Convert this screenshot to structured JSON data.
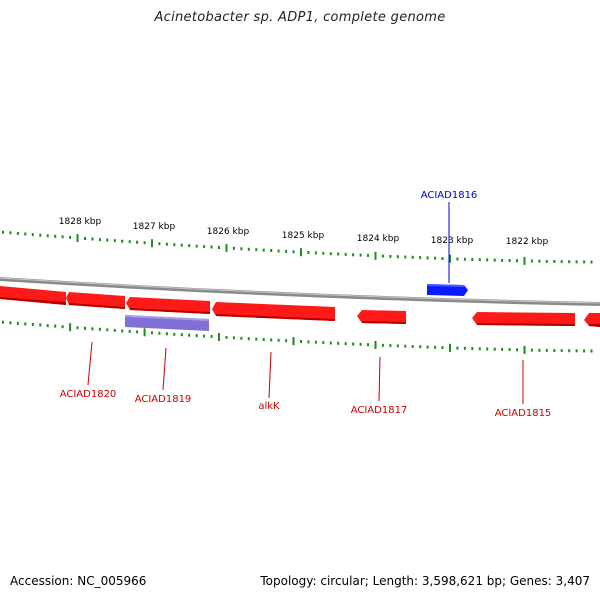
{
  "title": "Acinetobacter sp. ADP1, complete genome",
  "footer": {
    "accession": "Accession: NC_005966",
    "summary": "Topology: circular; Length: 3,598,621 bp; Genes: 3,407"
  },
  "scale_labels": [
    "1828 kbp",
    "1827 kbp",
    "1826 kbp",
    "1825 kbp",
    "1824 kbp",
    "1823 kbp",
    "1822 kbp"
  ],
  "gene_labels": [
    {
      "name": "ACIAD1816",
      "strand": "forward",
      "color": "#0000cc"
    },
    {
      "name": "ACIAD1820",
      "strand": "reverse",
      "color": "#cc0000"
    },
    {
      "name": "ACIAD1819",
      "strand": "reverse",
      "color": "#cc0000"
    },
    {
      "name": "alkK",
      "strand": "reverse",
      "color": "#cc0000"
    },
    {
      "name": "ACIAD1817",
      "strand": "reverse",
      "color": "#cc0000"
    },
    {
      "name": "ACIAD1815",
      "strand": "reverse",
      "color": "#cc0000"
    }
  ],
  "colors": {
    "backbone": "#8a8a8a",
    "reverse_gene": "#ff1a1a",
    "forward_gene": "#0a1cff",
    "rna_feature": "#7f6fd6",
    "ticks": "#1f8a1f"
  }
}
